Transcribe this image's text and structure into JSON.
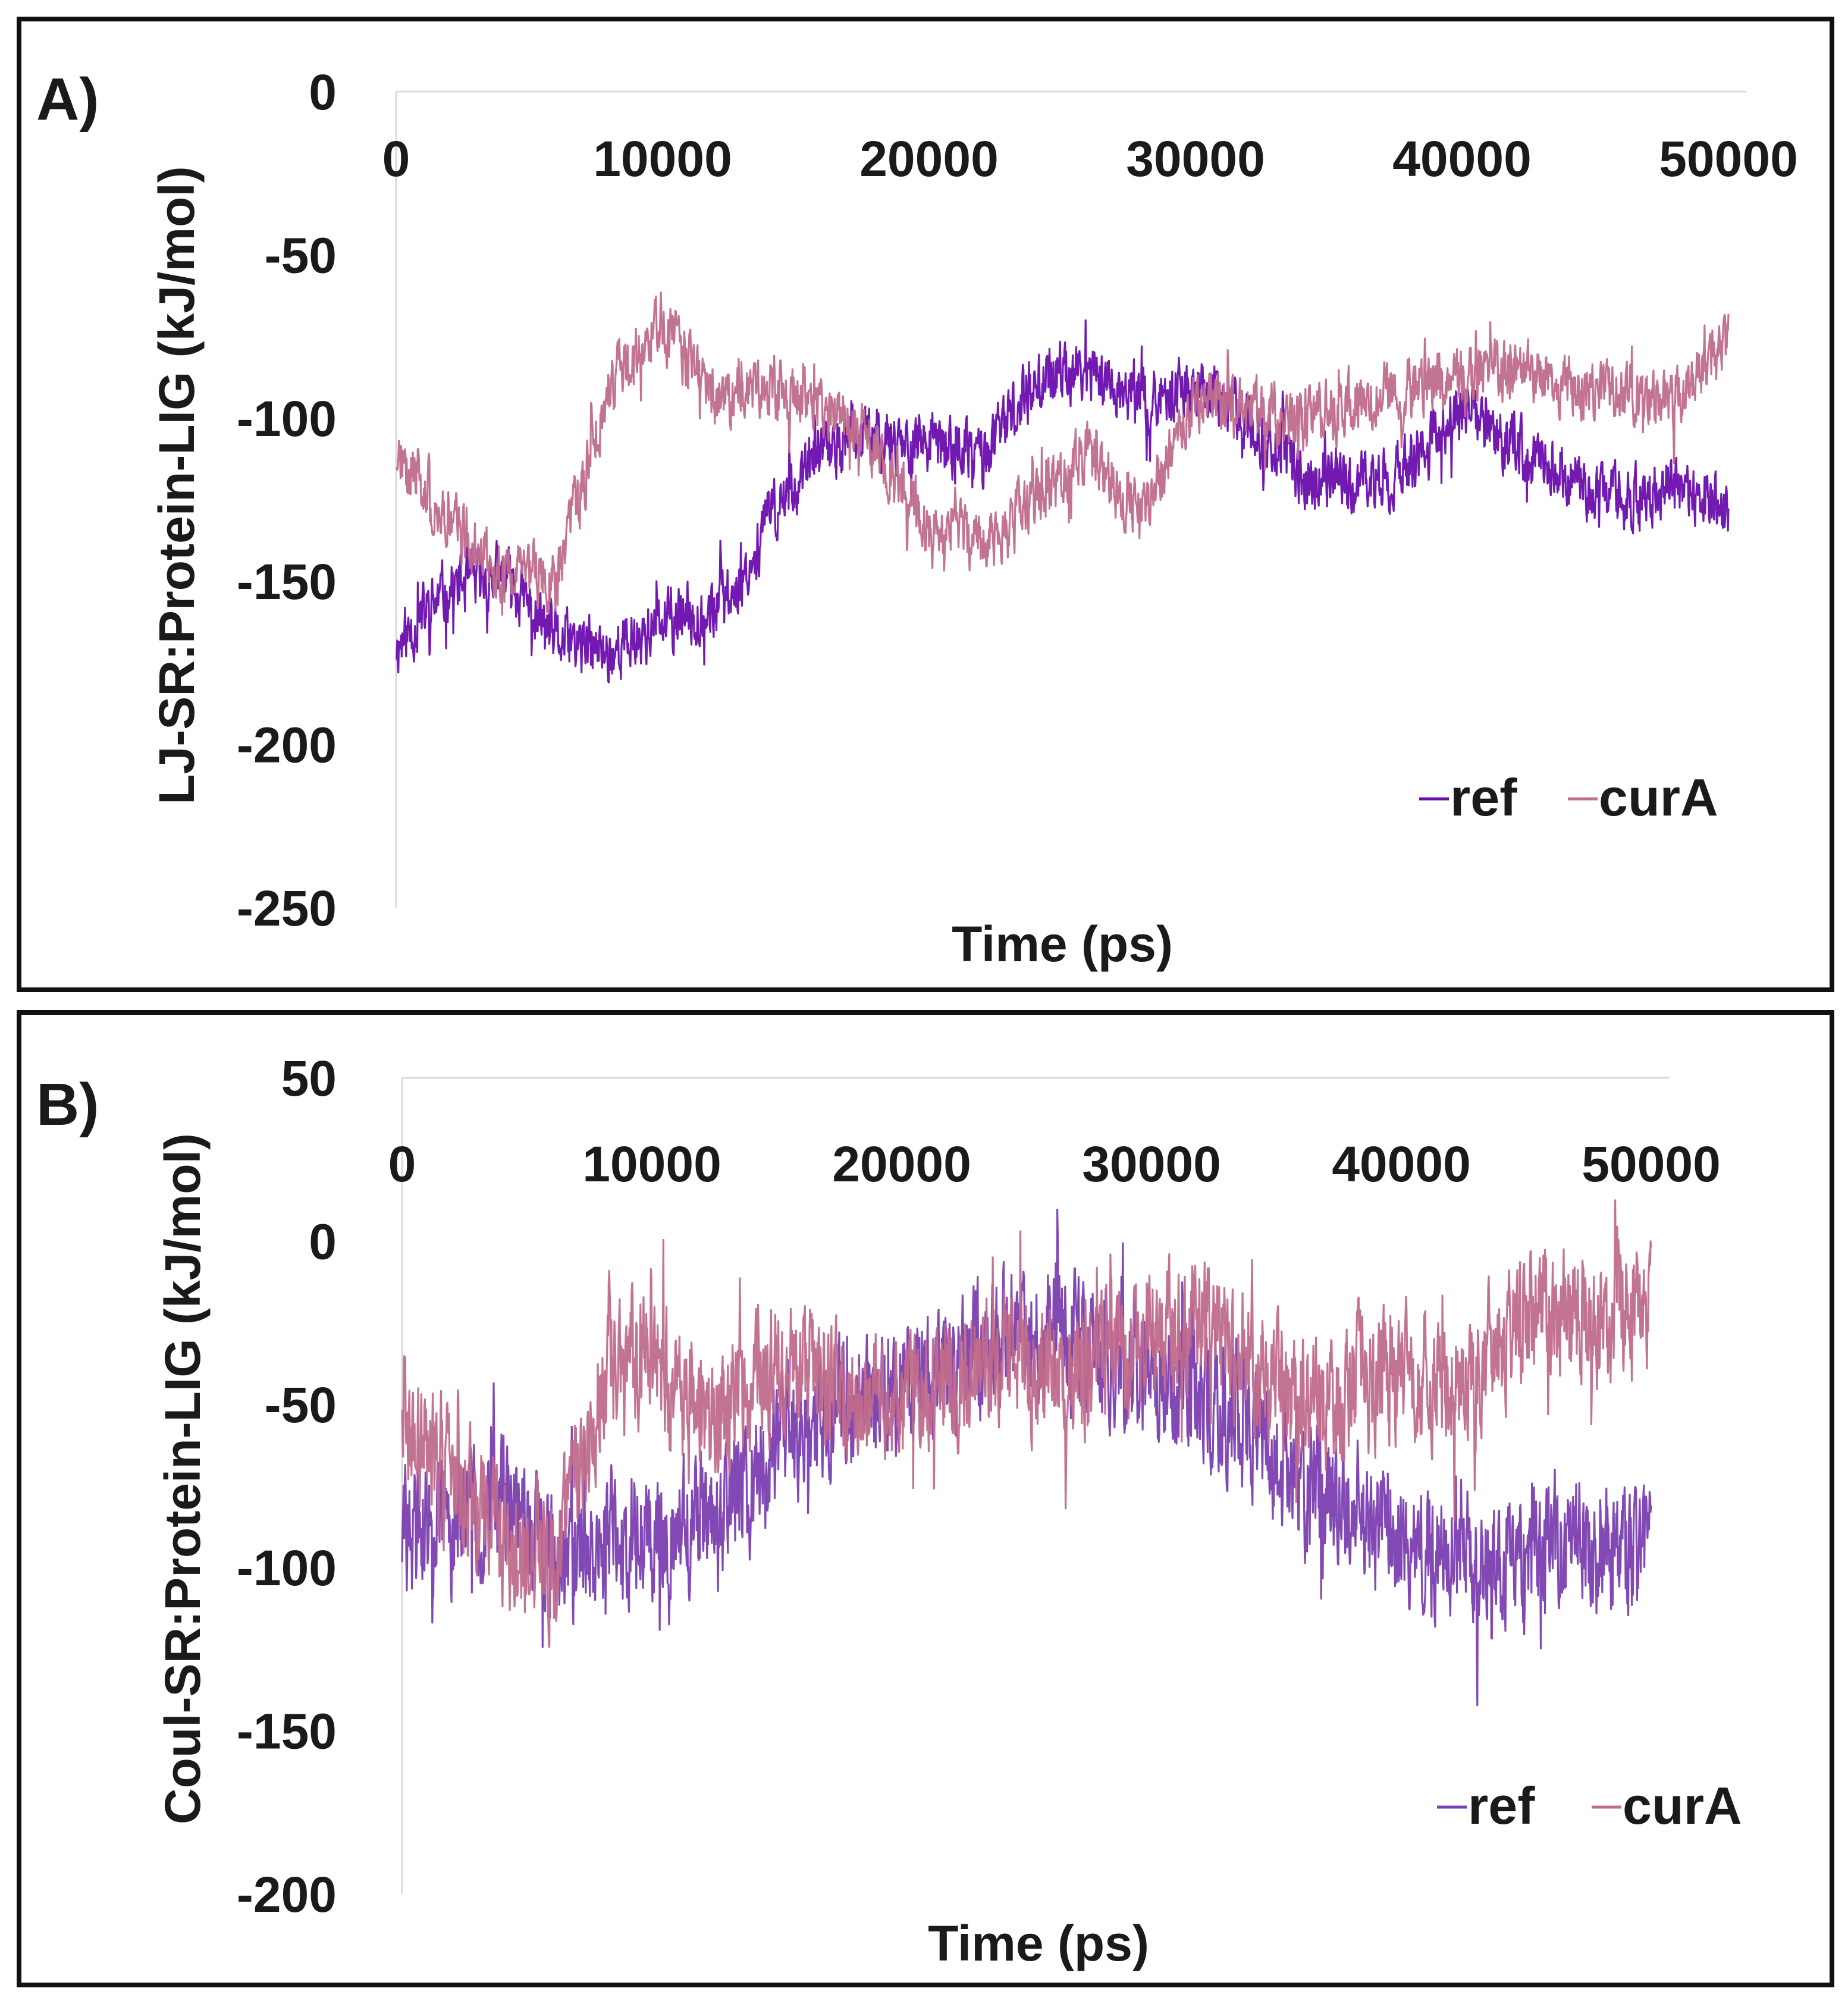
{
  "chart_data": [
    {
      "panel_label": "A)",
      "type": "line",
      "title": "",
      "xlabel": "Time (ps)",
      "ylabel": "LJ-SR:Protein-LIG (kJ/mol)",
      "xlim": [
        0,
        50000
      ],
      "ylim": [
        -250,
        0
      ],
      "xticks": [
        0,
        10000,
        20000,
        30000,
        40000,
        50000
      ],
      "xtick_labels": [
        "0",
        "10000",
        "20000",
        "30000",
        "40000",
        "50000"
      ],
      "yticks": [
        0,
        -50,
        -100,
        -150,
        -200,
        -250
      ],
      "ytick_labels": [
        "0",
        "-50",
        "-100",
        "-150",
        "-200",
        "-250"
      ],
      "x_axis_position": "top (at y = 0)",
      "legend_position": "bottom-right",
      "noise_amplitude": 14,
      "series": [
        {
          "name": "ref",
          "color": "#6a0dad",
          "x": [
            0,
            2000,
            4000,
            6000,
            8000,
            10000,
            12000,
            13000,
            14000,
            16000,
            18000,
            20000,
            22000,
            24000,
            26000,
            28000,
            30000,
            32000,
            34000,
            36000,
            38000,
            40000,
            42000,
            44000,
            46000,
            48000,
            50000
          ],
          "values": [
            -170,
            -152,
            -148,
            -168,
            -172,
            -163,
            -158,
            -150,
            -130,
            -110,
            -105,
            -108,
            -112,
            -88,
            -85,
            -95,
            -90,
            -100,
            -118,
            -120,
            -115,
            -98,
            -108,
            -118,
            -125,
            -122,
            -128
          ]
        },
        {
          "name": "curA",
          "color": "#c06c8c",
          "x": [
            0,
            2000,
            4000,
            6000,
            8000,
            10000,
            12000,
            14000,
            16000,
            18000,
            20000,
            22000,
            24000,
            26000,
            28000,
            30000,
            32000,
            34000,
            36000,
            38000,
            40000,
            42000,
            44000,
            46000,
            48000,
            50000
          ],
          "values": [
            -110,
            -130,
            -148,
            -150,
            -90,
            -70,
            -95,
            -90,
            -95,
            -108,
            -135,
            -138,
            -125,
            -110,
            -130,
            -95,
            -98,
            -100,
            -95,
            -90,
            -88,
            -85,
            -90,
            -95,
            -95,
            -75
          ]
        }
      ]
    },
    {
      "panel_label": "B)",
      "type": "line",
      "title": "",
      "xlabel": "Time (ps)",
      "ylabel": "Coul-SR:Protein-LIG (kJ/mol)",
      "xlim": [
        0,
        50000
      ],
      "ylim": [
        -200,
        50
      ],
      "xticks": [
        0,
        10000,
        20000,
        30000,
        40000,
        50000
      ],
      "xtick_labels": [
        "0",
        "10000",
        "20000",
        "30000",
        "40000",
        "50000"
      ],
      "yticks": [
        50,
        0,
        -50,
        -100,
        -150,
        -200
      ],
      "ytick_labels": [
        "50",
        "0",
        "-50",
        "-100",
        "-150",
        "-200"
      ],
      "x_axis_position": "top",
      "legend_position": "bottom-right",
      "noise_amplitude": 30,
      "series": [
        {
          "name": "ref",
          "color": "#7b3fb0",
          "x": [
            0,
            2000,
            4000,
            6000,
            8000,
            10000,
            12000,
            14000,
            16000,
            18000,
            20000,
            22000,
            24000,
            26000,
            28000,
            30000,
            32000,
            34000,
            36000,
            38000,
            40000,
            42000,
            44000,
            46000,
            48000,
            50000
          ],
          "values": [
            -90,
            -85,
            -80,
            -95,
            -92,
            -88,
            -85,
            -75,
            -55,
            -50,
            -45,
            -40,
            -30,
            -25,
            -35,
            -40,
            -45,
            -55,
            -75,
            -80,
            -95,
            -95,
            -97,
            -92,
            -95,
            -95
          ]
        },
        {
          "name": "curA",
          "color": "#c06c8c",
          "x": [
            0,
            2000,
            4000,
            6000,
            8000,
            10000,
            12000,
            14000,
            16000,
            18000,
            20000,
            22000,
            24000,
            26000,
            28000,
            30000,
            32000,
            34000,
            36000,
            38000,
            40000,
            42000,
            44000,
            46000,
            48000,
            50000
          ],
          "values": [
            -55,
            -75,
            -90,
            -100,
            -45,
            -35,
            -55,
            -45,
            -40,
            -48,
            -50,
            -40,
            -38,
            -40,
            -35,
            -30,
            -25,
            -38,
            -50,
            -45,
            -40,
            -45,
            -30,
            -20,
            -25,
            -20
          ]
        }
      ]
    }
  ]
}
